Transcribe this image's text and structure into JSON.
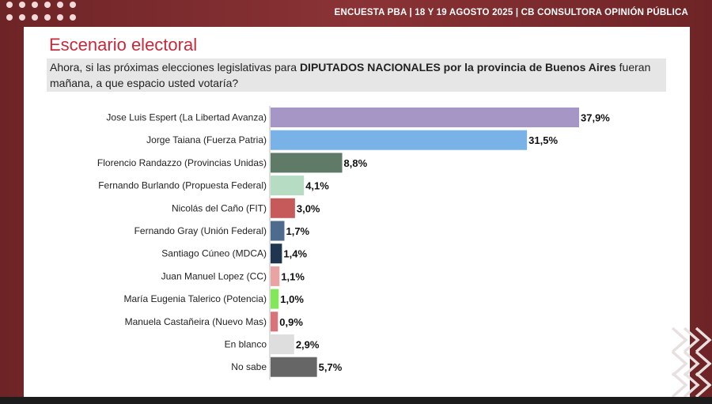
{
  "header": {
    "text": "ENCUESTA PBA | 18 Y 19  AGOSTO 2025 | CB CONSULTORA OPINIÓN PÚBLICA"
  },
  "title": "Escenario electoral",
  "question": {
    "part1": "Ahora, si las próximas elecciones legislativas para ",
    "bold": "DIPUTADOS NACIONALES por la provincia de Buenos Aires",
    "part2": " fueran mañana, a que espacio usted votaría?"
  },
  "chart_data": {
    "type": "bar",
    "orientation": "horizontal",
    "title": "",
    "xlabel": "",
    "ylabel": "",
    "xlim": [
      0,
      40
    ],
    "grid": false,
    "categories": [
      "Jose Luis Espert (La Libertad Avanza)",
      "Jorge Taiana (Fuerza Patria)",
      "Florencio Randazzo (Provincias Unidas)",
      "Fernando Burlando (Propuesta Federal)",
      "Nicolás del Caño (FIT)",
      "Fernando Gray (Unión Federal)",
      "Santiago Cúneo (MDCA)",
      "Juan Manuel Lopez (CC)",
      "María Eugenia Talerico (Potencia)",
      "Manuela Castañeira (Nuevo Mas)",
      "En blanco",
      "No sabe"
    ],
    "values": [
      37.9,
      31.5,
      8.8,
      4.1,
      3.0,
      1.7,
      1.4,
      1.1,
      1.0,
      0.9,
      2.9,
      5.7
    ],
    "value_labels": [
      "37,9%",
      "31,5%",
      "8,8%",
      "4,1%",
      "3,0%",
      "1,7%",
      "1,4%",
      "1,1%",
      "1,0%",
      "0,9%",
      "2,9%",
      "5,7%"
    ],
    "colors": [
      "#a596c6",
      "#79b2e6",
      "#5f7b68",
      "#b6dcc4",
      "#c65a5a",
      "#4d6b8c",
      "#1f3550",
      "#e9a3a3",
      "#82e85a",
      "#d9737a",
      "#dedede",
      "#666666"
    ]
  }
}
